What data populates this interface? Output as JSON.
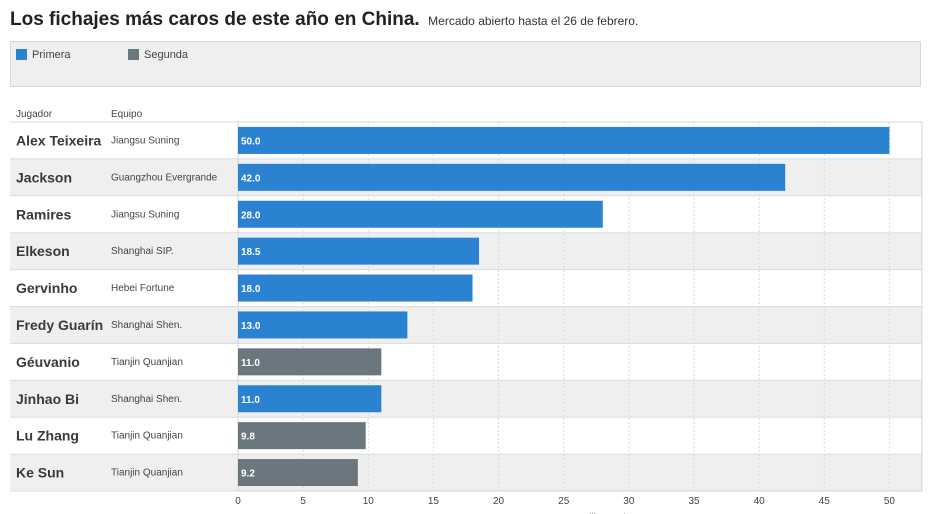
{
  "header": {
    "title": "Los fichajes más caros de este año en China.",
    "subtitle": "Mercado abierto hasta el 26 de febrero."
  },
  "legend": [
    {
      "label": "Primera",
      "color": "#2b82d0"
    },
    {
      "label": "Segunda",
      "color": "#6b777e"
    }
  ],
  "columns": {
    "player": "Jugador",
    "team": "Equipo"
  },
  "chart_data": {
    "type": "bar",
    "orientation": "horizontal",
    "categories": [
      "Alex Teixeira",
      "Jackson",
      "Ramires",
      "Elkeson",
      "Gervinho",
      "Fredy Guarín",
      "Géuvanio",
      "Jinhao Bi",
      "Lu Zhang",
      "Ke Sun"
    ],
    "teams": [
      "Jiangsu Suning",
      "Guangzhou Evergrande",
      "Jiangsu Suning",
      "Shanghai SIP.",
      "Hebei Fortune",
      "Shanghai Shen.",
      "Tianjin Quanjian",
      "Shanghai Shen.",
      "Tianjin Quanjian",
      "Tianjin Quanjian"
    ],
    "values": [
      50.0,
      42.0,
      28.0,
      18.5,
      18.0,
      13.0,
      11.0,
      11.0,
      9.8,
      9.2
    ],
    "value_labels": [
      "50.0",
      "42.0",
      "28.0",
      "18.5",
      "18.0",
      "13.0",
      "11.0",
      "11.0",
      "9.8",
      "9.2"
    ],
    "division": [
      "Primera",
      "Primera",
      "Primera",
      "Primera",
      "Primera",
      "Primera",
      "Segunda",
      "Primera",
      "Segunda",
      "Segunda"
    ],
    "xticks": [
      0,
      5,
      10,
      15,
      20,
      25,
      30,
      35,
      40,
      45,
      50
    ],
    "xlim": [
      0,
      52.5
    ],
    "xlabel": "Millones de euros",
    "grid": true,
    "legend_position": "top-left",
    "row_colors": [
      "#ffffff",
      "#efefef"
    ],
    "grid_color": "#d9d9d9",
    "bar_colors": {
      "Primera": "#2b82d0",
      "Segunda": "#6b777e"
    }
  }
}
